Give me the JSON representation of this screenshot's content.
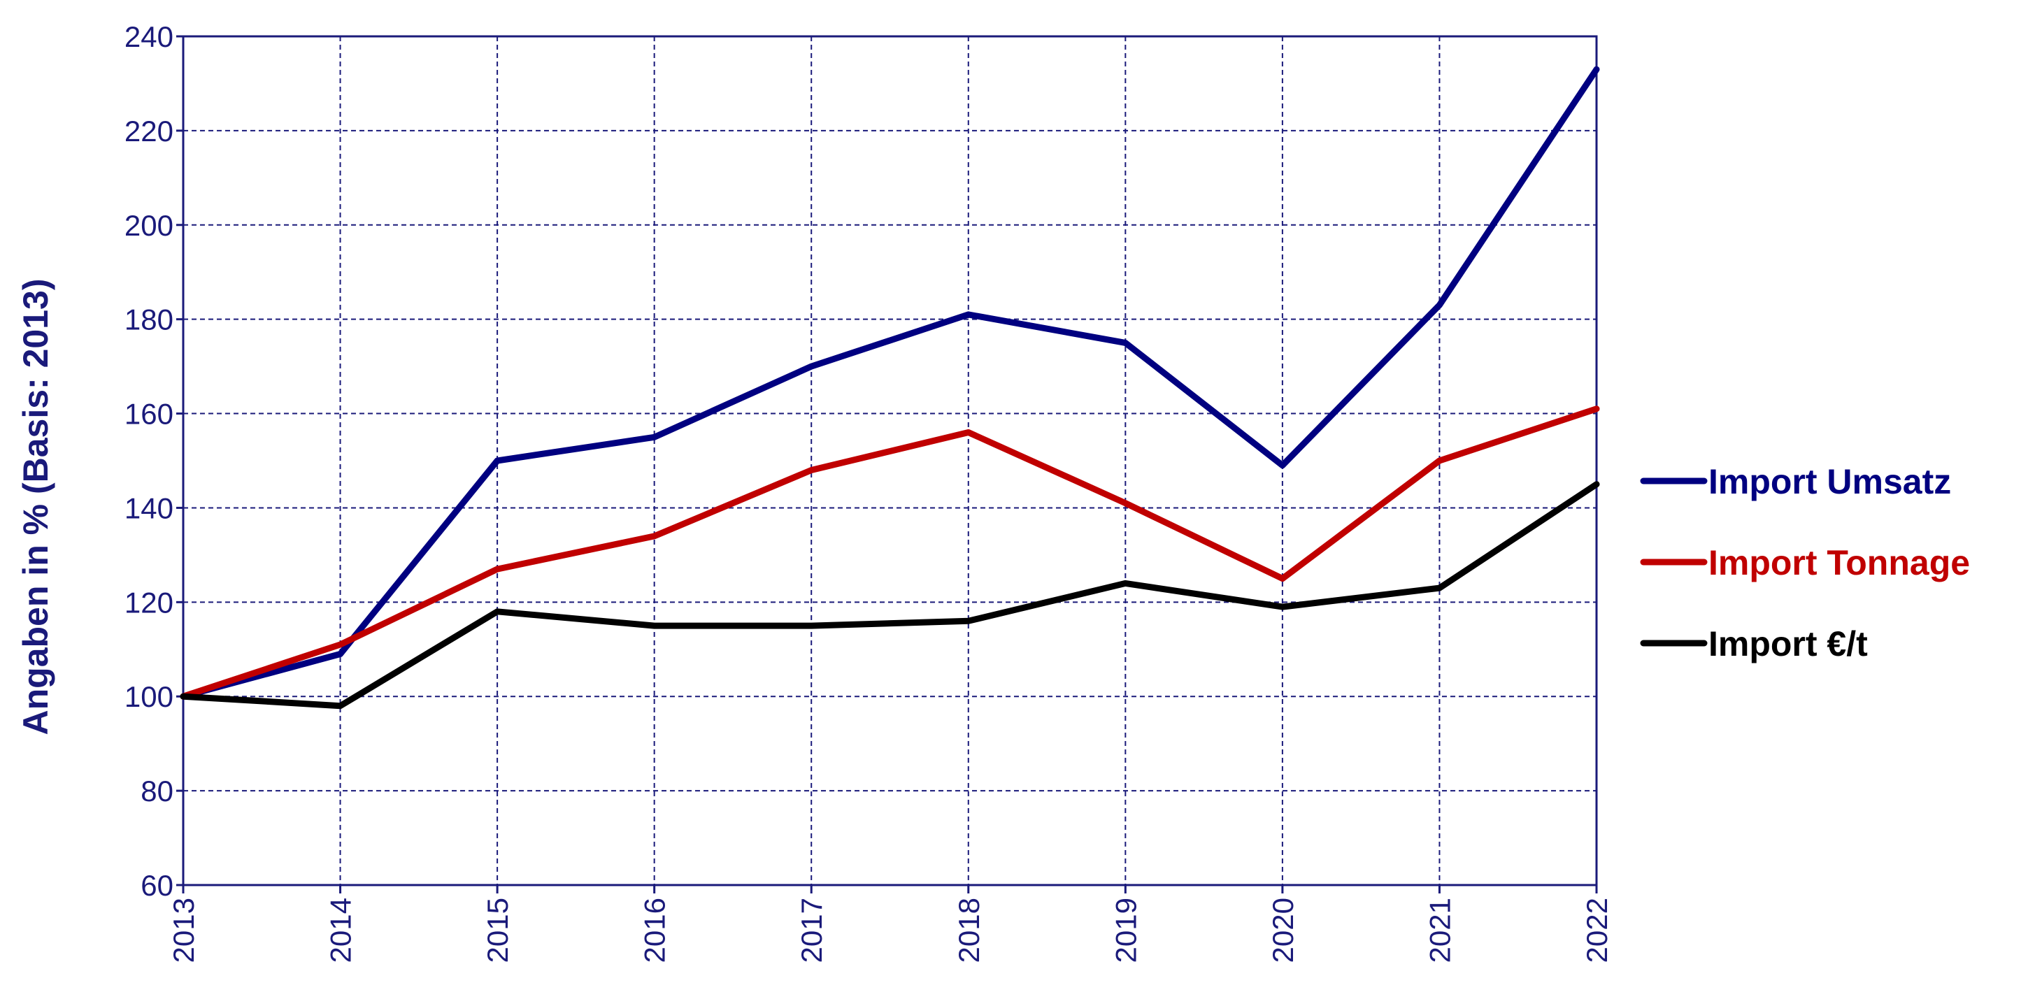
{
  "chart_data": {
    "type": "line",
    "x": [
      "2013",
      "2014",
      "2015",
      "2016",
      "2017",
      "2018",
      "2019",
      "2020",
      "2021",
      "2022"
    ],
    "ylabel": "Angaben in % (Basis: 2013)",
    "ylim": [
      60,
      240
    ],
    "yticks": [
      60,
      80,
      100,
      120,
      140,
      160,
      180,
      200,
      220,
      240
    ],
    "grid": true,
    "legend_position": "right",
    "series": [
      {
        "name": "Import Umsatz",
        "color": "#000080",
        "values": [
          100,
          109,
          150,
          155,
          170,
          181,
          175,
          149,
          183,
          233
        ]
      },
      {
        "name": "Import Tonnage",
        "color": "#c00000",
        "values": [
          100,
          111,
          127,
          134,
          148,
          156,
          141,
          125,
          150,
          161
        ]
      },
      {
        "name": "Import €/t",
        "color": "#000000",
        "values": [
          100,
          98,
          118,
          115,
          115,
          116,
          124,
          119,
          123,
          145
        ]
      }
    ]
  }
}
